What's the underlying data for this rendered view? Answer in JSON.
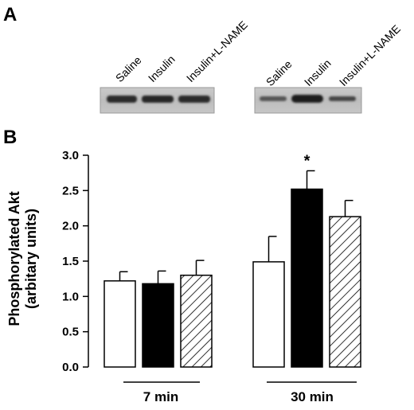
{
  "panels": {
    "a_label": "A",
    "b_label": "B"
  },
  "blot": {
    "left_lanes": [
      "Saline",
      "Insulin",
      "Insulin+L-NAME"
    ],
    "right_lanes": [
      "Saline",
      "Insulin",
      "Insulin+L-NAME"
    ]
  },
  "chart_data": {
    "type": "bar",
    "ylabel_line1": "Phosphorylated Akt",
    "ylabel_line2": "(arbitary units)",
    "ylim": [
      0.0,
      3.0
    ],
    "yticks": [
      "0.0",
      "0.5",
      "1.0",
      "1.5",
      "2.0",
      "2.5",
      "3.0"
    ],
    "ytick_values": [
      0.0,
      0.5,
      1.0,
      1.5,
      2.0,
      2.5,
      3.0
    ],
    "categories": [
      "7 min",
      "30 min"
    ],
    "series": [
      {
        "fill": "white",
        "values": [
          1.22,
          1.49
        ],
        "errors": [
          0.13,
          0.36
        ]
      },
      {
        "fill": "black",
        "values": [
          1.18,
          2.52
        ],
        "errors": [
          0.18,
          0.26
        ]
      },
      {
        "fill": "hatched",
        "values": [
          1.3,
          2.13
        ],
        "errors": [
          0.21,
          0.23
        ]
      }
    ],
    "annotations": [
      {
        "text": "*",
        "category": 1,
        "series": 1
      }
    ]
  }
}
